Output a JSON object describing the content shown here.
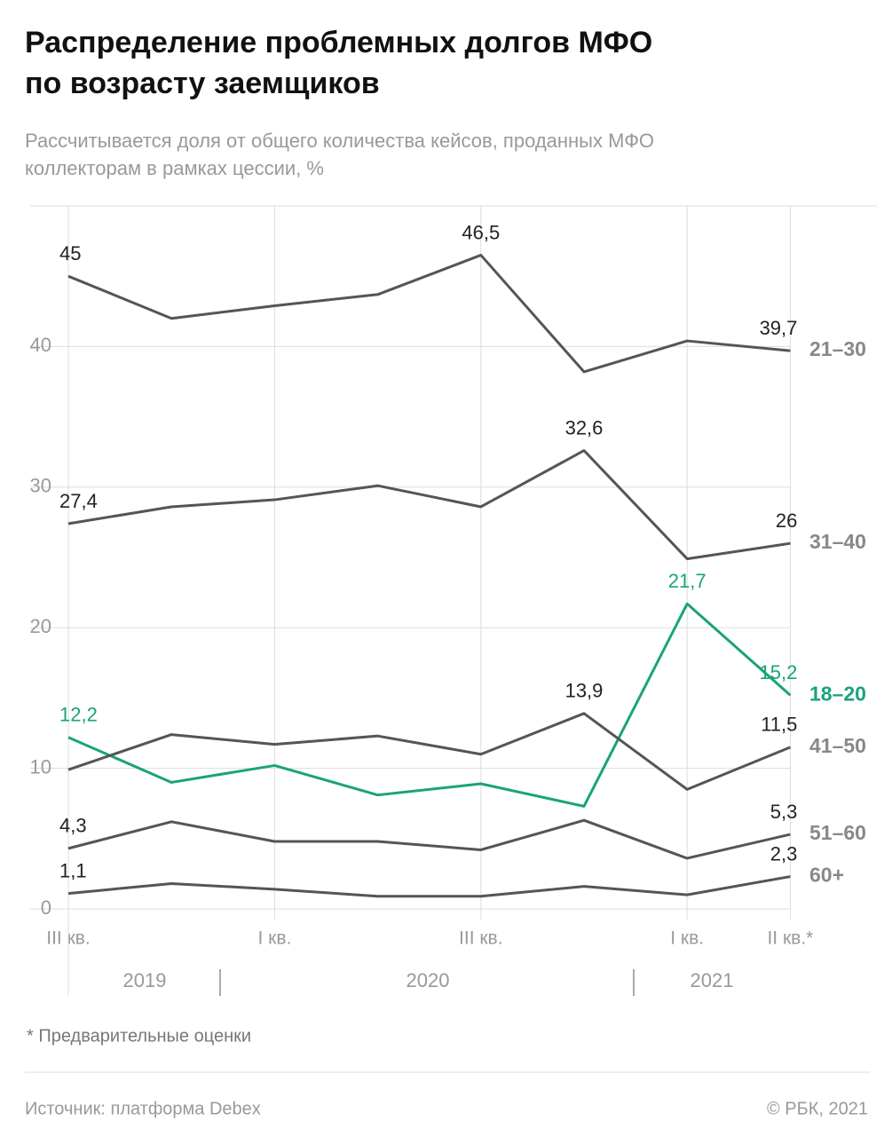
{
  "chart_data": {
    "type": "line",
    "title": [
      "Распределение проблемных долгов МФО",
      "по возрасту заемщиков"
    ],
    "subtitle": [
      "Рассчитывается доля от общего количества кейсов, проданных МФО",
      "коллекторам в рамках цессии, %"
    ],
    "categories": [
      "III кв.",
      null,
      "I кв.",
      null,
      "III кв.",
      null,
      "I кв.",
      "II кв.*"
    ],
    "year_labels": [
      "2019",
      "2020",
      "2021"
    ],
    "ylim": [
      0,
      50
    ],
    "yticks": [
      0,
      10,
      20,
      30,
      40
    ],
    "grid": true,
    "series": [
      {
        "name": "21–30",
        "color": "#555555",
        "values": [
          45,
          42,
          42.9,
          43.7,
          46.5,
          38.2,
          40.4,
          39.7
        ],
        "value_labels": [
          "45",
          null,
          null,
          null,
          "46,5",
          null,
          null,
          "39,7"
        ]
      },
      {
        "name": "31–40",
        "color": "#555555",
        "values": [
          27.4,
          28.6,
          29.1,
          30.1,
          28.6,
          32.6,
          24.9,
          26
        ],
        "value_labels": [
          "27,4",
          null,
          null,
          null,
          null,
          "32,6",
          null,
          "26"
        ]
      },
      {
        "name": "18–20",
        "color": "#1aa37a",
        "values": [
          12.2,
          9,
          10.2,
          8.1,
          8.9,
          7.3,
          21.7,
          15.2
        ],
        "value_labels": [
          "12,2",
          null,
          null,
          null,
          null,
          null,
          "21,7",
          "15,2"
        ]
      },
      {
        "name": "41–50",
        "color": "#555555",
        "values": [
          9.9,
          12.4,
          11.7,
          12.3,
          11,
          13.9,
          8.5,
          11.5
        ],
        "value_labels": [
          null,
          null,
          null,
          null,
          null,
          "13,9",
          null,
          "11,5"
        ]
      },
      {
        "name": "51–60",
        "color": "#555555",
        "values": [
          4.3,
          6.2,
          4.8,
          4.8,
          4.2,
          6.3,
          3.6,
          5.3
        ],
        "value_labels": [
          "4,3",
          null,
          null,
          null,
          null,
          null,
          null,
          "5,3"
        ]
      },
      {
        "name": "60+",
        "color": "#555555",
        "values": [
          1.1,
          1.8,
          1.4,
          0.9,
          0.9,
          1.6,
          1,
          2.3
        ],
        "value_labels": [
          "1,1",
          null,
          null,
          null,
          null,
          null,
          null,
          "2,3"
        ]
      }
    ]
  },
  "notes": {
    "footnote": "* Предварительные оценки",
    "source": "Источник: платформа Debex",
    "copyright": "© РБК, 2021"
  }
}
